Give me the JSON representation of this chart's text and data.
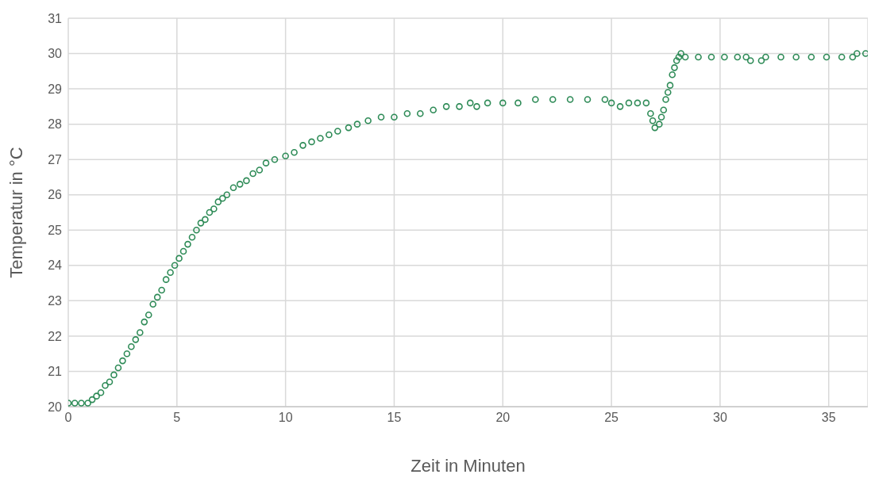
{
  "chart_data": {
    "type": "scatter",
    "xlabel": "Zeit in Minuten",
    "ylabel": "Temperatur in °C",
    "xlim": [
      0,
      36.8
    ],
    "xticks": [
      0,
      5,
      10,
      15,
      20,
      25,
      30,
      35
    ],
    "ylim": [
      20,
      31
    ],
    "yticks": [
      20,
      21,
      22,
      23,
      24,
      25,
      26,
      27,
      28,
      29,
      30,
      31
    ],
    "grid": true,
    "marker": "circle",
    "legend": false,
    "x": [
      0,
      0.3,
      0.6,
      0.9,
      1.1,
      1.3,
      1.5,
      1.7,
      1.9,
      2.1,
      2.3,
      2.5,
      2.7,
      2.9,
      3.1,
      3.3,
      3.5,
      3.7,
      3.9,
      4.1,
      4.3,
      4.5,
      4.7,
      4.9,
      5.1,
      5.3,
      5.5,
      5.7,
      5.9,
      6.1,
      6.3,
      6.5,
      6.7,
      6.9,
      7.1,
      7.3,
      7.6,
      7.9,
      8.2,
      8.5,
      8.8,
      9.1,
      9.5,
      10.0,
      10.4,
      10.8,
      11.2,
      11.6,
      12.0,
      12.4,
      12.9,
      13.3,
      13.8,
      14.4,
      15.0,
      15.6,
      16.2,
      16.8,
      17.4,
      18.0,
      18.5,
      18.8,
      19.3,
      20.0,
      20.7,
      21.5,
      22.3,
      23.1,
      23.9,
      24.7,
      25.0,
      25.4,
      25.8,
      26.2,
      26.6,
      26.8,
      26.9,
      27.0,
      27.2,
      27.3,
      27.4,
      27.5,
      27.6,
      27.7,
      27.8,
      27.9,
      28.0,
      28.1,
      28.2,
      28.4,
      29.0,
      29.6,
      30.2,
      30.8,
      31.2,
      31.4,
      31.9,
      32.1,
      32.8,
      33.5,
      34.2,
      34.9,
      35.6,
      36.1,
      36.3,
      36.7
    ],
    "series": [
      {
        "color": "#2e8b57",
        "values": [
          20.1,
          20.1,
          20.1,
          20.1,
          20.2,
          20.3,
          20.4,
          20.6,
          20.7,
          20.9,
          21.1,
          21.3,
          21.5,
          21.7,
          21.9,
          22.1,
          22.4,
          22.6,
          22.9,
          23.1,
          23.3,
          23.6,
          23.8,
          24.0,
          24.2,
          24.4,
          24.6,
          24.8,
          25.0,
          25.2,
          25.3,
          25.5,
          25.6,
          25.8,
          25.9,
          26.0,
          26.2,
          26.3,
          26.4,
          26.6,
          26.7,
          26.9,
          27.0,
          27.1,
          27.2,
          27.4,
          27.5,
          27.6,
          27.7,
          27.8,
          27.9,
          28.0,
          28.1,
          28.2,
          28.2,
          28.3,
          28.3,
          28.4,
          28.5,
          28.5,
          28.6,
          28.5,
          28.6,
          28.6,
          28.6,
          28.7,
          28.7,
          28.7,
          28.7,
          28.7,
          28.6,
          28.5,
          28.6,
          28.6,
          28.6,
          28.3,
          28.1,
          27.9,
          28.0,
          28.2,
          28.4,
          28.7,
          28.9,
          29.1,
          29.4,
          29.6,
          29.8,
          29.9,
          30.0,
          29.9,
          29.9,
          29.9,
          29.9,
          29.9,
          29.9,
          29.8,
          29.8,
          29.9,
          29.9,
          29.9,
          29.9,
          29.9,
          29.9,
          29.9,
          30.0,
          30.0
        ]
      }
    ]
  }
}
